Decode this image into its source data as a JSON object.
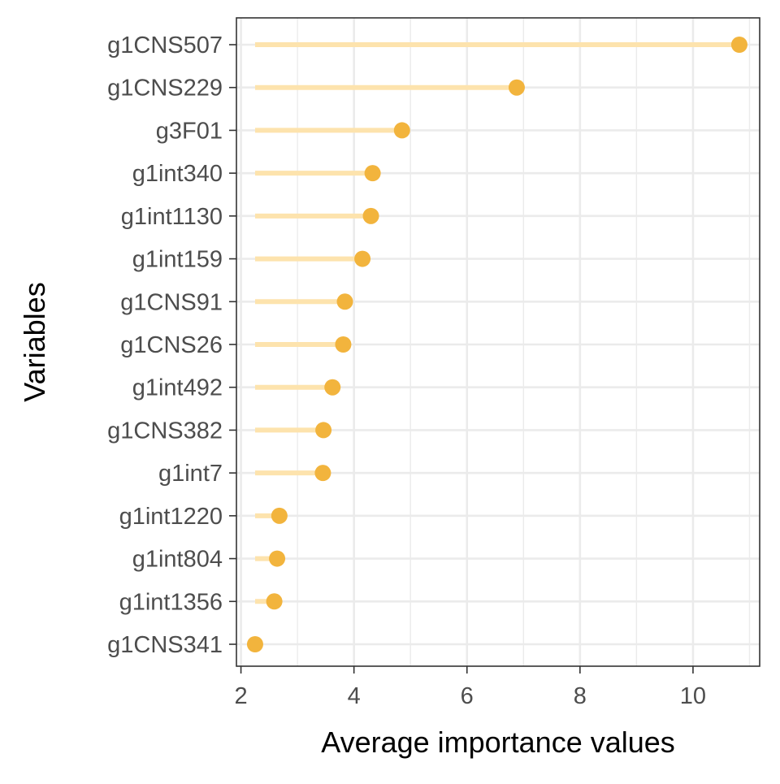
{
  "chart_data": {
    "type": "lollipop",
    "title": "",
    "xlabel": "Average importance values",
    "ylabel": "Variables",
    "xlim": [
      1.92,
      11.18
    ],
    "xticks": [
      2,
      4,
      6,
      8,
      10
    ],
    "x_tick_labels": [
      "2",
      "4",
      "6",
      "8",
      "10"
    ],
    "categories": [
      "g1CNS507",
      "g1CNS229",
      "g3F01",
      "g1int340",
      "g1int1130",
      "g1int159",
      "g1CNS91",
      "g1CNS26",
      "g1int492",
      "g1CNS382",
      "g1int7",
      "g1int1220",
      "g1int804",
      "g1int1356",
      "g1CNS341"
    ],
    "values": [
      10.82,
      6.88,
      4.85,
      4.33,
      4.3,
      4.15,
      3.84,
      3.81,
      3.62,
      3.46,
      3.45,
      2.68,
      2.64,
      2.59,
      2.25
    ],
    "baseline": 2.25,
    "grid": true,
    "legend": "none",
    "colors": {
      "point": "#f2b43d",
      "stem": "#fde3ad",
      "grid": "#ebebeb",
      "frame": "#333333"
    }
  }
}
